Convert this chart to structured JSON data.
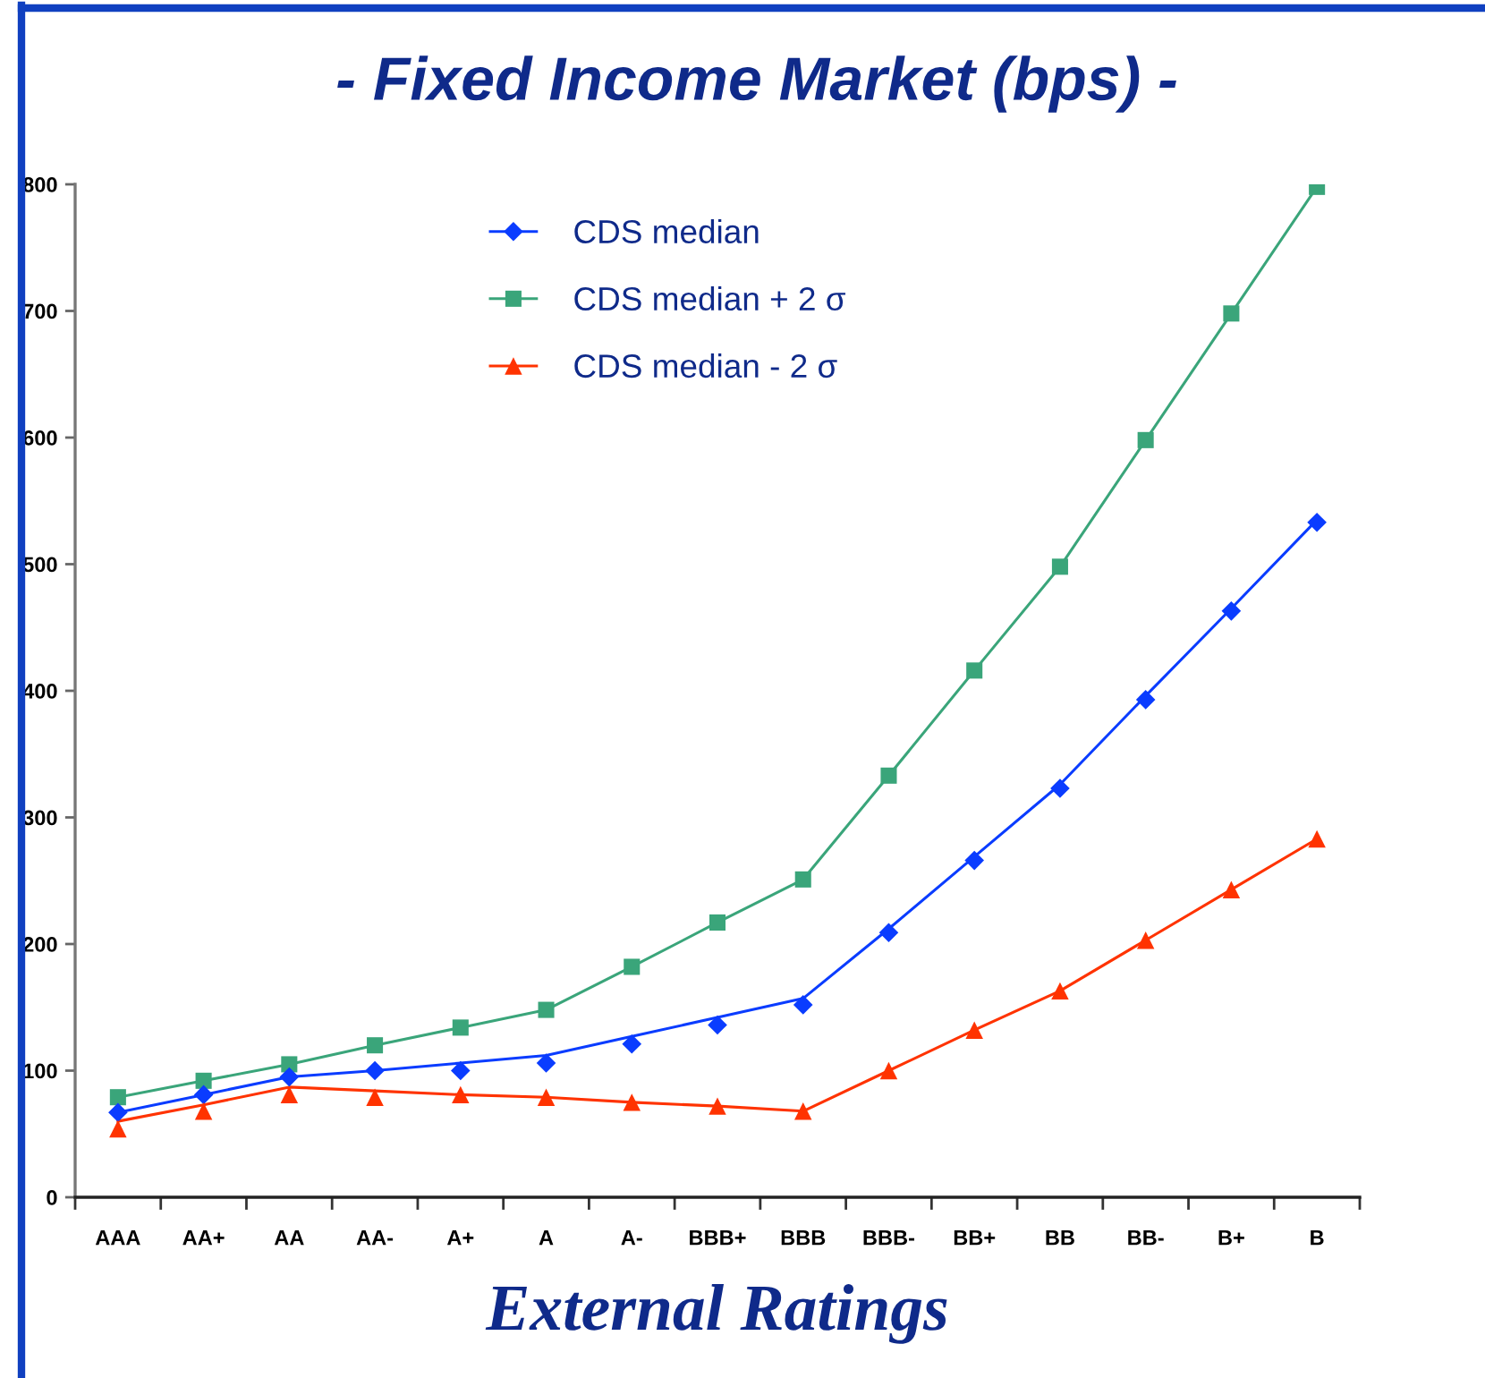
{
  "chart_data": {
    "type": "line",
    "title": "- Fixed Income Market (bps) -",
    "xlabel": "External Ratings",
    "categories": [
      "AAA",
      "AA+",
      "AA",
      "AA-",
      "A+",
      "A",
      "A-",
      "BBB+",
      "BBB",
      "BBB-",
      "BB+",
      "BB",
      "BB-",
      "B+",
      "B"
    ],
    "series": [
      {
        "name": "CDS median",
        "type": "scatter",
        "marker": "diamond",
        "color": "#0a3cff",
        "values": [
          67,
          81,
          95,
          100,
          100,
          106,
          121,
          136,
          152,
          209,
          266,
          323,
          393,
          463,
          533
        ]
      },
      {
        "type": "line",
        "color": "#0a3cff",
        "values": [
          67,
          81,
          95,
          100,
          106,
          112,
          127,
          142,
          157,
          212,
          269,
          326,
          396,
          465,
          535
        ]
      },
      {
        "name": "CDS median + 2 σ",
        "marker": "square",
        "color": "#3aa57a",
        "values": [
          79,
          92,
          105,
          120,
          134,
          148,
          182,
          217,
          251,
          333,
          416,
          498,
          598,
          698,
          798
        ]
      },
      {
        "name": "CDS median - 2 σ",
        "type": "scatter",
        "marker": "triangle",
        "color": "#ff3300",
        "values": [
          54,
          68,
          81,
          79,
          81,
          79,
          75,
          72,
          68,
          100,
          132,
          163,
          203,
          243,
          283
        ]
      },
      {
        "type": "line",
        "color": "#ff3300",
        "values": [
          60,
          73,
          87,
          84,
          81,
          79,
          75,
          72,
          68,
          100,
          132,
          163,
          203,
          243,
          283
        ]
      }
    ],
    "ylim": [
      0,
      800
    ],
    "yticks": [
      0,
      100,
      200,
      300,
      400,
      500,
      600,
      700,
      800
    ],
    "grid": false,
    "legend": "top"
  }
}
